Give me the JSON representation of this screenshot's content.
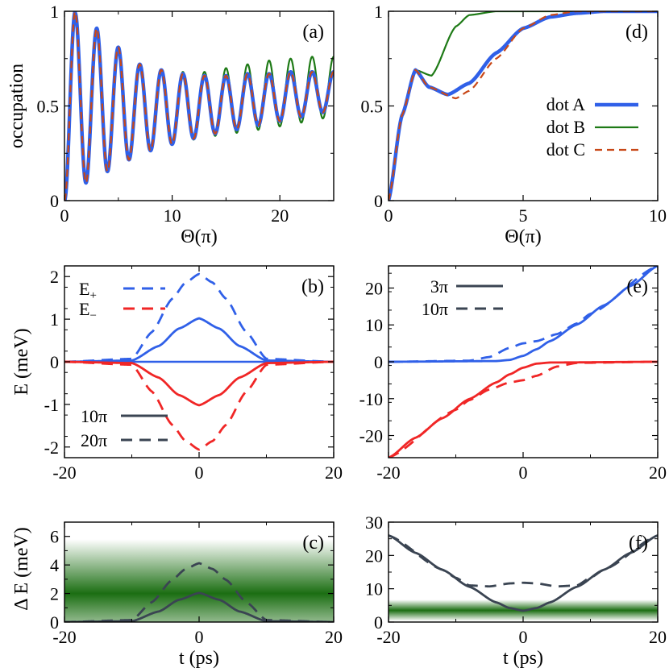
{
  "colors": {
    "blue": "#3060e8",
    "green": "#1e7a16",
    "orange": "#c84818",
    "red": "#f02626",
    "dark": "#3a4452",
    "band": "#1b6e12"
  },
  "chart_data": [
    {
      "id": "a",
      "type": "line",
      "panel_label": "(a)",
      "xlabel": "Θ(π)",
      "ylabel": "occupation",
      "xlim": [
        0,
        25
      ],
      "ylim": [
        0,
        1
      ],
      "xticks": [
        0,
        10,
        20
      ],
      "xtick_labels": [
        "0",
        "10",
        "20"
      ],
      "yticks": [
        0,
        0.5,
        1
      ],
      "ytick_labels": [
        "0",
        "0.5",
        "1"
      ],
      "series": [
        {
          "name": "dot B",
          "style": "green-thin",
          "description": "Rabi oscillation, amplitude growing after Θ≈13",
          "x": [
            0,
            1,
            3,
            5,
            7,
            9,
            11,
            13,
            15,
            17,
            19,
            21,
            23,
            25
          ],
          "y_peaks": [
            0,
            0.99,
            0.91,
            0.81,
            0.72,
            0.69,
            0.68,
            0.68,
            0.7,
            0.72,
            0.74,
            0.75,
            0.76,
            0.76
          ]
        },
        {
          "name": "dot A",
          "style": "blue-thick",
          "description": "damped Rabi oscillation",
          "x": [
            0,
            1,
            3,
            5,
            7,
            9,
            11,
            13,
            15,
            17,
            19,
            21,
            23,
            25
          ],
          "y_peaks": [
            0,
            0.99,
            0.91,
            0.81,
            0.72,
            0.69,
            0.67,
            0.66,
            0.66,
            0.67,
            0.67,
            0.68,
            0.68,
            0.68
          ]
        },
        {
          "name": "dot C",
          "style": "orange-dashed",
          "description": "follows dot A"
        }
      ]
    },
    {
      "id": "d",
      "type": "line",
      "panel_label": "(d)",
      "xlabel": "Θ(π)",
      "ylabel": "",
      "xlim": [
        0,
        10
      ],
      "ylim": [
        0,
        1
      ],
      "xticks": [
        0,
        5,
        10
      ],
      "xtick_labels": [
        "0",
        "5",
        "10"
      ],
      "yticks": [
        0,
        0.5,
        1
      ],
      "ytick_labels": [
        "0",
        "0.5",
        "1"
      ],
      "legend": [
        {
          "label": "dot A",
          "style": "blue-thick"
        },
        {
          "label": "dot B",
          "style": "green-thin"
        },
        {
          "label": "dot C",
          "style": "orange-dashed"
        }
      ],
      "series": [
        {
          "name": "dot B",
          "x": [
            0,
            0.5,
            1,
            1.6,
            2.5,
            3,
            4,
            10
          ],
          "y": [
            0,
            0.45,
            0.69,
            0.66,
            0.92,
            0.98,
            1,
            1
          ]
        },
        {
          "name": "dot A",
          "x": [
            0,
            0.5,
            1,
            1.5,
            2.2,
            3,
            4,
            5,
            6,
            7,
            8,
            10
          ],
          "y": [
            0,
            0.45,
            0.69,
            0.6,
            0.56,
            0.62,
            0.78,
            0.91,
            0.97,
            0.99,
            1,
            1
          ]
        },
        {
          "name": "dot C",
          "x": [
            0,
            0.5,
            1,
            1.5,
            2.5,
            3,
            4,
            5,
            6,
            7,
            8,
            10
          ],
          "y": [
            0,
            0.45,
            0.69,
            0.6,
            0.54,
            0.58,
            0.75,
            0.91,
            0.98,
            1,
            1,
            1
          ]
        }
      ]
    },
    {
      "id": "b",
      "type": "line",
      "panel_label": "(b)",
      "xlabel": "",
      "ylabel": "E  (meV)",
      "xlim": [
        -20,
        20
      ],
      "ylim": [
        -2.25,
        2.25
      ],
      "xticks": [
        -20,
        0,
        20
      ],
      "xtick_labels": [
        "-20",
        "0",
        "20"
      ],
      "yticks": [
        -2,
        -1,
        0,
        1,
        2
      ],
      "ytick_labels": [
        "-2",
        "-1",
        "0",
        "1",
        "2"
      ],
      "legend_colors": [
        {
          "label": "E",
          "sub": "+"
        },
        {
          "label": "E",
          "sub": "−"
        }
      ],
      "legend_styles": [
        {
          "label": "10π",
          "style": "solid"
        },
        {
          "label": "20π",
          "style": "dashed"
        }
      ],
      "series": [
        {
          "name": "E+ 10π",
          "x": [
            -20,
            -10,
            -6,
            -3,
            0,
            3,
            6,
            10,
            20
          ],
          "y": [
            0,
            0.03,
            0.37,
            0.78,
            1.02,
            0.78,
            0.37,
            0.03,
            0
          ]
        },
        {
          "name": "E+ 20π",
          "x": [
            -20,
            -10,
            -7,
            -4,
            -2,
            0,
            2,
            4,
            7,
            10,
            20
          ],
          "y": [
            0,
            0.07,
            0.7,
            1.48,
            1.86,
            2.06,
            1.86,
            1.48,
            0.7,
            0.07,
            0
          ]
        },
        {
          "name": "E− 10π",
          "x": [
            -20,
            -10,
            -6,
            -3,
            0,
            3,
            6,
            10,
            20
          ],
          "y": [
            0,
            -0.03,
            -0.37,
            -0.78,
            -1.02,
            -0.78,
            -0.37,
            -0.03,
            0
          ]
        },
        {
          "name": "E− 20π",
          "x": [
            -20,
            -10,
            -7,
            -4,
            -2,
            0,
            2,
            4,
            7,
            10,
            20
          ],
          "y": [
            0,
            -0.07,
            -0.7,
            -1.48,
            -1.86,
            -2.06,
            -1.86,
            -1.48,
            -0.7,
            -0.07,
            0
          ]
        }
      ]
    },
    {
      "id": "e",
      "type": "line",
      "panel_label": "(e)",
      "xlabel": "",
      "ylabel": "",
      "xlim": [
        -20,
        20
      ],
      "ylim": [
        -26,
        26
      ],
      "xticks": [
        -20,
        0,
        20
      ],
      "xtick_labels": [
        "-20",
        "0",
        "20"
      ],
      "yticks": [
        -20,
        -10,
        0,
        10,
        20
      ],
      "ytick_labels": [
        "-20",
        "-10",
        "0",
        "10",
        "20"
      ],
      "legend_styles": [
        {
          "label": "3π",
          "style": "solid"
        },
        {
          "label": "10π",
          "style": "dashed"
        }
      ],
      "series": [
        {
          "name": "E+ 3π",
          "x": [
            -20,
            -4,
            -2,
            0,
            2,
            4,
            8,
            12,
            16,
            20
          ],
          "y": [
            0,
            0.2,
            0.5,
            1.6,
            3.4,
            5.6,
            10.1,
            15.3,
            20.6,
            26
          ]
        },
        {
          "name": "E+ 10π",
          "x": [
            -20,
            -8,
            -5,
            -2,
            0,
            2,
            5,
            8,
            10,
            20
          ],
          "y": [
            0,
            0.3,
            1.3,
            3.8,
            5,
            5.6,
            7.5,
            10.4,
            13,
            26
          ]
        },
        {
          "name": "E− 3π",
          "x": [
            -20,
            -16,
            -12,
            -8,
            -4,
            -2,
            0,
            2,
            4,
            20
          ],
          "y": [
            -26,
            -20.6,
            -15.3,
            -10.1,
            -5.6,
            -3.4,
            -1.6,
            -0.5,
            -0.2,
            0
          ]
        },
        {
          "name": "E− 10π",
          "x": [
            -20,
            -10,
            -8,
            -5,
            -2,
            0,
            2,
            5,
            8,
            20
          ],
          "y": [
            -26,
            -13,
            -10.4,
            -7.5,
            -5.6,
            -5,
            -3.8,
            -1.3,
            -0.3,
            0
          ]
        }
      ]
    },
    {
      "id": "c",
      "type": "line",
      "panel_label": "(c)",
      "xlabel": "t (ps)",
      "ylabel": "Δ E  (meV)",
      "xlim": [
        -20,
        20
      ],
      "ylim": [
        0,
        7
      ],
      "xticks": [
        -20,
        0,
        20
      ],
      "xtick_labels": [
        "-20",
        "0",
        "20"
      ],
      "yticks": [
        0,
        2,
        4,
        6
      ],
      "ytick_labels": [
        "0",
        "2",
        "4",
        "6"
      ],
      "band": {
        "center": 2.0,
        "halfwidth": 3.8
      },
      "series": [
        {
          "name": "10π",
          "style": "solid",
          "x": [
            -20,
            -10,
            -6,
            -3,
            0,
            3,
            6,
            10,
            20
          ],
          "y": [
            0,
            0.06,
            0.74,
            1.56,
            2.04,
            1.56,
            0.74,
            0.06,
            0
          ]
        },
        {
          "name": "20π",
          "style": "dashed",
          "x": [
            -20,
            -10,
            -7,
            -4,
            -2,
            0,
            2,
            4,
            7,
            10,
            20
          ],
          "y": [
            0,
            0.14,
            1.4,
            2.96,
            3.72,
            4.12,
            3.72,
            2.96,
            1.4,
            0.14,
            0
          ]
        }
      ]
    },
    {
      "id": "f",
      "type": "line",
      "panel_label": "(f)",
      "xlabel": "t (ps)",
      "ylabel": "",
      "xlim": [
        -20,
        20
      ],
      "ylim": [
        0,
        30
      ],
      "xticks": [
        -20,
        0,
        20
      ],
      "xtick_labels": [
        "-20",
        "0",
        "20"
      ],
      "yticks": [
        0,
        10,
        20,
        30
      ],
      "ytick_labels": [
        "0",
        "10",
        "20",
        "30"
      ],
      "band": {
        "center": 3.5,
        "halfwidth": 3.2
      },
      "series": [
        {
          "name": "3π",
          "style": "solid",
          "x": [
            -20,
            -16,
            -12,
            -8,
            -4,
            -2,
            0,
            2,
            4,
            8,
            12,
            16,
            20
          ],
          "y": [
            26,
            20.8,
            15.7,
            10.6,
            5.9,
            4.2,
            3.4,
            4.2,
            5.9,
            10.6,
            15.7,
            20.8,
            26
          ]
        },
        {
          "name": "10π",
          "style": "dashed",
          "x": [
            -20,
            -12,
            -10,
            -8,
            -5,
            -2,
            0,
            2,
            5,
            8,
            10,
            12,
            20
          ],
          "y": [
            26,
            15.7,
            13.3,
            11,
            10.7,
            11.6,
            11.8,
            11.6,
            10.7,
            11,
            13.3,
            15.7,
            26
          ]
        }
      ]
    }
  ]
}
